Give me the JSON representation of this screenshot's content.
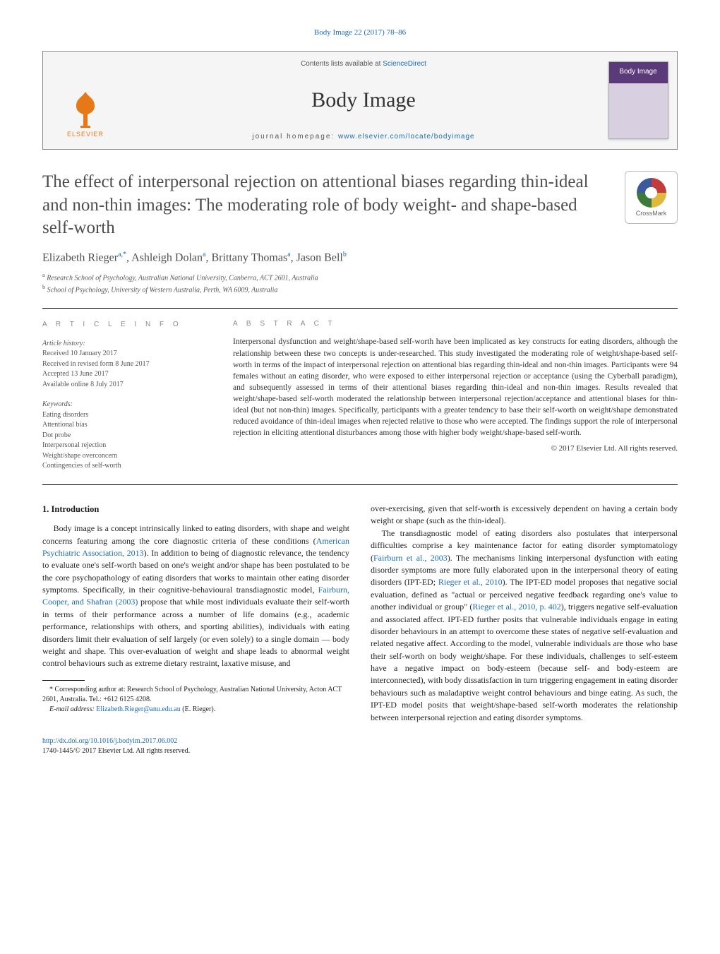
{
  "page_header": {
    "journal_link_text": "Body Image 22 (2017) 78–86",
    "journal_link_color": "#1a6bb8"
  },
  "masthead": {
    "contents_prefix": "Contents lists available at ",
    "contents_link": "ScienceDirect",
    "journal_name": "Body Image",
    "homepage_prefix": "journal homepage: ",
    "homepage_link": "www.elsevier.com/locate/bodyimage",
    "elsevier_text": "ELSEVIER",
    "cover_title": "Body Image",
    "background_color": "#f5f5f5",
    "border_color": "#888888",
    "logo_color": "#e67817",
    "cover_gradient_top": "#5b3a7a",
    "cover_gradient_bottom": "#d8d0e0"
  },
  "crossmark": {
    "label": "CrossMark",
    "colors": [
      "#c43b3b",
      "#e0b83e",
      "#3b7a3b",
      "#3b5a9e"
    ]
  },
  "title": "The effect of interpersonal rejection on attentional biases regarding thin-ideal and non-thin images: The moderating role of body weight- and shape-based self-worth",
  "title_color": "#4d4d4d",
  "title_fontsize": 25,
  "authors_html": "Elizabeth Rieger<sup>a,*</sup>, Ashleigh Dolan<sup>a</sup>, Brittany Thomas<sup>a</sup>, Jason Bell<sup>b</sup>",
  "affiliations": [
    {
      "sup": "a",
      "text": "Research School of Psychology, Australian National University, Canberra, ACT 2601, Australia"
    },
    {
      "sup": "b",
      "text": "School of Psychology, University of Western Australia, Perth, WA 6009, Australia"
    }
  ],
  "article_info": {
    "heading": "a r t i c l e   i n f o",
    "history_label": "Article history:",
    "history": [
      "Received 10 January 2017",
      "Received in revised form 8 June 2017",
      "Accepted 13 June 2017",
      "Available online 8 July 2017"
    ],
    "keywords_label": "Keywords:",
    "keywords": [
      "Eating disorders",
      "Attentional bias",
      "Dot probe",
      "Interpersonal rejection",
      "Weight/shape overconcern",
      "Contingencies of self-worth"
    ]
  },
  "abstract": {
    "heading": "a b s t r a c t",
    "text": "Interpersonal dysfunction and weight/shape-based self-worth have been implicated as key constructs for eating disorders, although the relationship between these two concepts is under-researched. This study investigated the moderating role of weight/shape-based self-worth in terms of the impact of interpersonal rejection on attentional bias regarding thin-ideal and non-thin images. Participants were 94 females without an eating disorder, who were exposed to either interpersonal rejection or acceptance (using the Cyberball paradigm), and subsequently assessed in terms of their attentional biases regarding thin-ideal and non-thin images. Results revealed that weight/shape-based self-worth moderated the relationship between interpersonal rejection/acceptance and attentional biases for thin-ideal (but not non-thin) images. Specifically, participants with a greater tendency to base their self-worth on weight/shape demonstrated reduced avoidance of thin-ideal images when rejected relative to those who were accepted. The findings support the role of interpersonal rejection in eliciting attentional disturbances among those with higher body weight/shape-based self-worth.",
    "copyright": "© 2017 Elsevier Ltd. All rights reserved."
  },
  "body": {
    "section_heading": "1.  Introduction",
    "para1_pre": "Body image is a concept intrinsically linked to eating disorders, with shape and weight concerns featuring among the core diagnostic criteria of these conditions (",
    "para1_link1": "American Psychiatric Association, 2013",
    "para1_mid1": "). In addition to being of diagnostic relevance, the tendency to evaluate one's self-worth based on one's weight and/or shape has been postulated to be the core psychopathology of eating disorders that works to maintain other eating disorder symptoms. Specifically, in their cognitive-behavioural transdiagnostic model, ",
    "para1_link2": "Fairburn, Cooper, and Shafran (2003)",
    "para1_post": " propose that while most individuals evaluate their self-worth in terms of their performance across a number of life domains (e.g., academic performance, relationships with others, and sporting abilities), individuals with eating disorders limit their evaluation of self largely (or even solely) to a single domain — body weight and shape. This over-evaluation of weight and shape leads to abnormal weight control behaviours such as extreme dietary restraint, laxative misuse, and",
    "para2": "over-exercising, given that self-worth is excessively dependent on having a certain body weight or shape (such as the thin-ideal).",
    "para3_pre": "The transdiagnostic model of eating disorders also postulates that interpersonal difficulties comprise a key maintenance factor for eating disorder symptomatology (",
    "para3_link1": "Fairburn et al., 2003",
    "para3_mid1": "). The mechanisms linking interpersonal dysfunction with eating disorder symptoms are more fully elaborated upon in the interpersonal theory of eating disorders (IPT-ED; ",
    "para3_link2": "Rieger et al., 2010",
    "para3_mid2": "). The IPT-ED model proposes that negative social evaluation, defined as \"actual or perceived negative feedback regarding one's value to another individual or group\" (",
    "para3_link3": "Rieger et al., 2010, p. 402",
    "para3_post": "), triggers negative self-evaluation and associated affect. IPT-ED further posits that vulnerable individuals engage in eating disorder behaviours in an attempt to overcome these states of negative self-evaluation and related negative affect. According to the model, vulnerable individuals are those who base their self-worth on body weight/shape. For these individuals, challenges to self-esteem have a negative impact on body-esteem (because self- and body-esteem are interconnected), with body dissatisfaction in turn triggering engagement in eating disorder behaviours such as maladaptive weight control behaviours and binge eating. As such, the IPT-ED model posits that weight/shape-based self-worth moderates the relationship between interpersonal rejection and eating disorder symptoms."
  },
  "footnotes": {
    "corr": "* Corresponding author at: Research School of Psychology, Australian National University, Acton ACT 2601, Australia. Tel.: +612 6125 4208.",
    "email_label": "E-mail address: ",
    "email": "Elizabeth.Rieger@anu.edu.au",
    "email_suffix": " (E. Rieger)."
  },
  "bottom": {
    "doi": "http://dx.doi.org/10.1016/j.bodyim.2017.06.002",
    "issn_line": "1740-1445/© 2017 Elsevier Ltd. All rights reserved."
  },
  "colors": {
    "link": "#1a6bb8",
    "heading_gray": "#888888",
    "body_text": "#232323",
    "title_gray": "#4d4d4d",
    "rule": "#000000"
  }
}
